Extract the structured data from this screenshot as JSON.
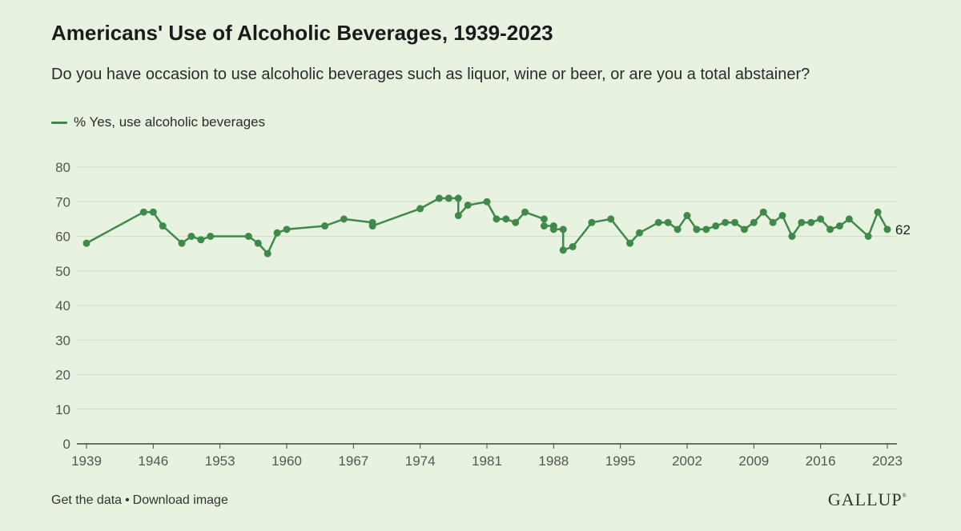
{
  "header": {
    "title": "Americans' Use of Alcoholic Beverages, 1939-2023",
    "subtitle": "Do you have occasion to use alcoholic beverages such as liquor, wine or beer, or are you a total abstainer?"
  },
  "footer": {
    "get_data": "Get the data",
    "separator": "•",
    "download": "Download image",
    "logo": "GALLUP",
    "logo_mark": "®"
  },
  "colors": {
    "series": "#3f8a4a",
    "grid": "#cfdcc6",
    "axis": "#555555",
    "background": "#e8f2e1"
  },
  "chart_data": {
    "type": "line",
    "title": "Americans' Use of Alcoholic Beverages, 1939-2023",
    "xlabel": "",
    "ylabel": "",
    "xlim": [
      1939,
      2023
    ],
    "ylim": [
      0,
      80
    ],
    "x_ticks": [
      1939,
      1946,
      1953,
      1960,
      1967,
      1974,
      1981,
      1988,
      1995,
      2002,
      2009,
      2016,
      2023
    ],
    "y_ticks": [
      0,
      10,
      20,
      30,
      40,
      50,
      60,
      70,
      80
    ],
    "grid": true,
    "legend_position": "top-left",
    "end_label": "62",
    "series": [
      {
        "name": "% Yes, use alcoholic beverages",
        "points": [
          [
            1939,
            58
          ],
          [
            1945,
            67
          ],
          [
            1946,
            67
          ],
          [
            1947,
            63
          ],
          [
            1949,
            58
          ],
          [
            1950,
            60
          ],
          [
            1951,
            59
          ],
          [
            1952,
            60
          ],
          [
            1956,
            60
          ],
          [
            1957,
            58
          ],
          [
            1958,
            55
          ],
          [
            1959,
            61
          ],
          [
            1960,
            62
          ],
          [
            1964,
            63
          ],
          [
            1966,
            65
          ],
          [
            1969,
            64
          ],
          [
            1969,
            63
          ],
          [
            1974,
            68
          ],
          [
            1976,
            71
          ],
          [
            1977,
            71
          ],
          [
            1977,
            71
          ],
          [
            1978,
            71
          ],
          [
            1978,
            66
          ],
          [
            1979,
            69
          ],
          [
            1981,
            70
          ],
          [
            1982,
            65
          ],
          [
            1983,
            65
          ],
          [
            1984,
            64
          ],
          [
            1985,
            67
          ],
          [
            1987,
            65
          ],
          [
            1987,
            63
          ],
          [
            1988,
            63
          ],
          [
            1988,
            62
          ],
          [
            1989,
            62
          ],
          [
            1989,
            56
          ],
          [
            1990,
            57
          ],
          [
            1992,
            64
          ],
          [
            1994,
            65
          ],
          [
            1996,
            58
          ],
          [
            1997,
            61
          ],
          [
            1999,
            64
          ],
          [
            2000,
            64
          ],
          [
            2001,
            62
          ],
          [
            2002,
            66
          ],
          [
            2003,
            62
          ],
          [
            2004,
            62
          ],
          [
            2005,
            63
          ],
          [
            2006,
            64
          ],
          [
            2007,
            64
          ],
          [
            2008,
            62
          ],
          [
            2009,
            64
          ],
          [
            2010,
            67
          ],
          [
            2011,
            64
          ],
          [
            2012,
            66
          ],
          [
            2013,
            60
          ],
          [
            2014,
            64
          ],
          [
            2015,
            64
          ],
          [
            2016,
            65
          ],
          [
            2017,
            62
          ],
          [
            2018,
            63
          ],
          [
            2019,
            65
          ],
          [
            2021,
            60
          ],
          [
            2022,
            67
          ],
          [
            2023,
            62
          ]
        ]
      }
    ]
  }
}
